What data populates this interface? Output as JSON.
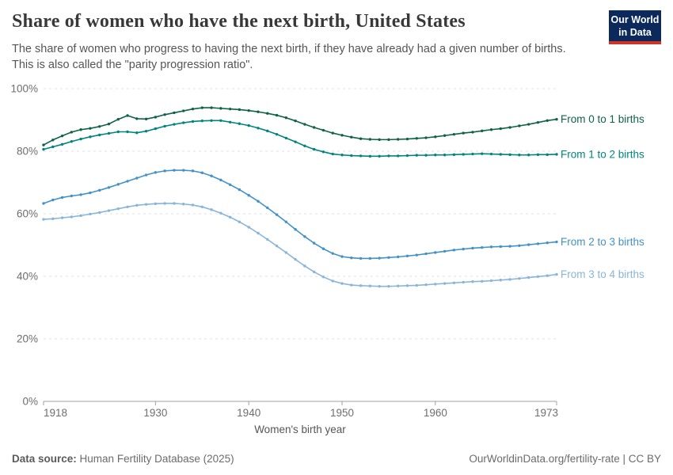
{
  "header": {
    "title": "Share of women who have the next birth, United States",
    "subtitle": "The share of women who progress to having the next birth, if they have already had a given number of births. This is also called the \"parity progression ratio\".",
    "logo": {
      "line1": "Our World",
      "line2": "in Data",
      "bg_color": "#0b2a5b",
      "accent_color": "#d13328"
    }
  },
  "chart_data": {
    "type": "line",
    "title": "Share of women who have the next birth, United States",
    "xlabel": "Women's birth year",
    "ylabel": "",
    "xlim": [
      1918,
      1973
    ],
    "ylim": [
      0,
      100
    ],
    "x_ticks": [
      1918,
      1930,
      1940,
      1950,
      1960,
      1973
    ],
    "y_ticks": [
      "0%",
      "20%",
      "40%",
      "60%",
      "80%",
      "100%"
    ],
    "grid": "horizontal-dashed",
    "legend_position": "right-edge-labels",
    "x": [
      1918,
      1919,
      1920,
      1921,
      1922,
      1923,
      1924,
      1925,
      1926,
      1927,
      1928,
      1929,
      1930,
      1931,
      1932,
      1933,
      1934,
      1935,
      1936,
      1937,
      1938,
      1939,
      1940,
      1941,
      1942,
      1943,
      1944,
      1945,
      1946,
      1947,
      1948,
      1949,
      1950,
      1951,
      1952,
      1953,
      1954,
      1955,
      1956,
      1957,
      1958,
      1959,
      1960,
      1961,
      1962,
      1963,
      1964,
      1965,
      1966,
      1967,
      1968,
      1969,
      1970,
      1971,
      1972,
      1973
    ],
    "series": [
      {
        "name": "From 0 to 1 births",
        "color": "#0e6347",
        "values": [
          82.0,
          83.6,
          84.9,
          86.1,
          86.9,
          87.3,
          87.9,
          88.7,
          90.2,
          91.4,
          90.4,
          90.3,
          90.9,
          91.7,
          92.3,
          92.9,
          93.5,
          93.9,
          93.9,
          93.7,
          93.5,
          93.3,
          93.0,
          92.6,
          92.1,
          91.5,
          90.7,
          89.7,
          88.6,
          87.6,
          86.7,
          85.8,
          85.1,
          84.5,
          84.0,
          83.8,
          83.7,
          83.7,
          83.8,
          83.9,
          84.1,
          84.3,
          84.6,
          85.0,
          85.4,
          85.8,
          86.1,
          86.5,
          86.9,
          87.2,
          87.6,
          88.1,
          88.6,
          89.2,
          89.8,
          90.2
        ]
      },
      {
        "name": "From 1 to 2 births",
        "color": "#00847e",
        "values": [
          80.6,
          81.4,
          82.2,
          83.1,
          83.9,
          84.6,
          85.2,
          85.7,
          86.2,
          86.2,
          85.9,
          86.4,
          87.2,
          88.0,
          88.6,
          89.1,
          89.5,
          89.7,
          89.8,
          89.8,
          89.3,
          88.8,
          88.2,
          87.4,
          86.5,
          85.4,
          84.2,
          83.0,
          81.7,
          80.6,
          79.8,
          79.1,
          78.8,
          78.6,
          78.5,
          78.4,
          78.4,
          78.5,
          78.5,
          78.6,
          78.7,
          78.7,
          78.8,
          78.8,
          78.9,
          79.0,
          79.1,
          79.2,
          79.1,
          79.0,
          78.9,
          78.8,
          78.8,
          78.9,
          78.9,
          79.0
        ]
      },
      {
        "name": "From 2 to 3 births",
        "color": "#4292c9",
        "values": [
          63.3,
          64.4,
          65.2,
          65.7,
          66.1,
          66.7,
          67.5,
          68.4,
          69.4,
          70.4,
          71.4,
          72.4,
          73.2,
          73.7,
          73.9,
          73.9,
          73.7,
          73.1,
          72.1,
          70.8,
          69.3,
          67.7,
          65.9,
          64.0,
          61.9,
          59.7,
          57.4,
          55.0,
          52.7,
          50.6,
          48.8,
          47.3,
          46.3,
          45.9,
          45.7,
          45.7,
          45.8,
          46.0,
          46.2,
          46.5,
          46.8,
          47.2,
          47.6,
          48.0,
          48.4,
          48.7,
          49.0,
          49.2,
          49.4,
          49.5,
          49.6,
          49.8,
          50.1,
          50.4,
          50.7,
          51.0
        ]
      },
      {
        "name": "From 3 to 4 births",
        "color": "#89b5da",
        "values": [
          58.2,
          58.4,
          58.7,
          59.0,
          59.4,
          59.9,
          60.4,
          61.0,
          61.6,
          62.2,
          62.7,
          63.0,
          63.2,
          63.3,
          63.3,
          63.1,
          62.8,
          62.2,
          61.3,
          60.2,
          58.9,
          57.4,
          55.7,
          53.8,
          51.8,
          49.7,
          47.6,
          45.4,
          43.3,
          41.4,
          39.8,
          38.5,
          37.7,
          37.2,
          37.0,
          36.9,
          36.8,
          36.8,
          36.9,
          37.0,
          37.1,
          37.3,
          37.5,
          37.7,
          37.9,
          38.1,
          38.3,
          38.4,
          38.6,
          38.8,
          39.0,
          39.3,
          39.6,
          39.9,
          40.2,
          40.6
        ]
      }
    ]
  },
  "footer": {
    "source_label": "Data source:",
    "source_value": "Human Fertility Database (2025)",
    "attribution": "OurWorldinData.org/fertility-rate | CC BY"
  }
}
